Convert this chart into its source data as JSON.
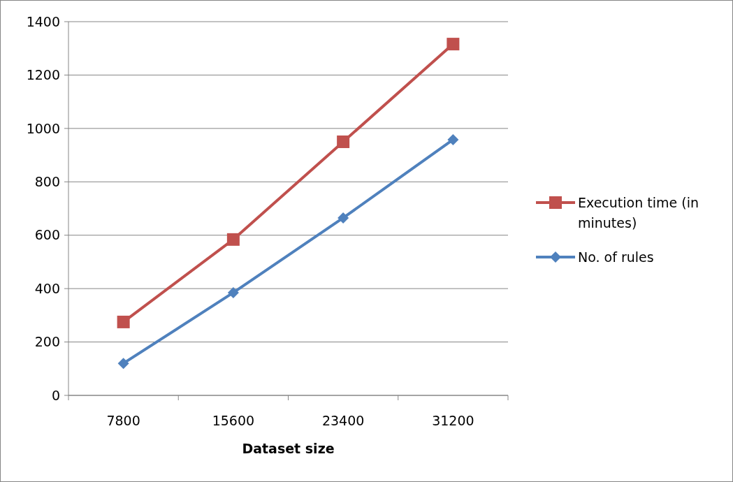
{
  "chart_data": {
    "type": "line",
    "xlabel": "Dataset size",
    "categories": [
      "7800",
      "15600",
      "23400",
      "31200"
    ],
    "series": [
      {
        "name": "Execution time (in minutes)",
        "color": "#c0504d",
        "marker": "square",
        "values": [
          275,
          584,
          950,
          1316
        ]
      },
      {
        "name": "No. of rules",
        "color": "#4f81bd",
        "marker": "diamond",
        "values": [
          120,
          385,
          665,
          958
        ]
      }
    ],
    "ylim": [
      0,
      1400
    ],
    "yticks": [
      0,
      200,
      400,
      600,
      800,
      1000,
      1200,
      1400
    ],
    "grid": "y",
    "legend": "right",
    "line_style": "solid"
  }
}
